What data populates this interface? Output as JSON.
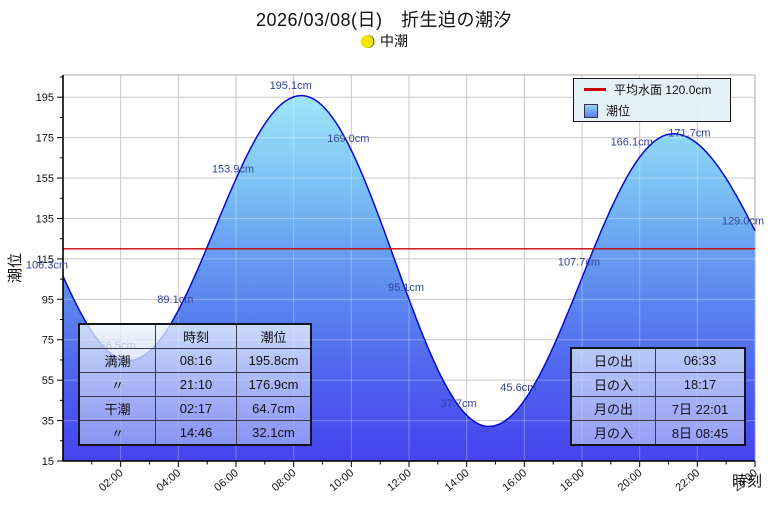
{
  "title": "2026/03/08(日)　折生迫の潮汐",
  "moon": {
    "phase_label": "中潮"
  },
  "legend": {
    "mean_label": "平均水面 120.0cm",
    "series_label": "潮位"
  },
  "axes": {
    "y_label": "潮位",
    "x_label": "時刻"
  },
  "chart_data": {
    "type": "area",
    "title": "2026/03/08(日)　折生迫の潮汐",
    "ylabel": "潮位",
    "xlabel": "時刻",
    "ylim": [
      15,
      206
    ],
    "xlim_hours": [
      0,
      24
    ],
    "y_ticks": [
      15,
      35,
      55,
      75,
      95,
      115,
      135,
      155,
      175,
      195
    ],
    "x_tick_hours": [
      2,
      4,
      6,
      8,
      10,
      12,
      14,
      16,
      18,
      20,
      22,
      24
    ],
    "x_tick_labels": [
      "02:00",
      "04:00",
      "06:00",
      "08:00",
      "10:00",
      "12:00",
      "14:00",
      "16:00",
      "18:00",
      "20:00",
      "22:00",
      "24:00"
    ],
    "mean_water_level_cm": 120.0,
    "mean_line_label": "平均水面 120.0cm",
    "series_label": "潮位",
    "sampled_points": [
      {
        "hour": 0,
        "value": 106.3,
        "label": "106.3cm"
      },
      {
        "hour": 2,
        "value": 66.5,
        "label": "66.5cm"
      },
      {
        "hour": 4,
        "value": 89.1,
        "label": "89.1cm"
      },
      {
        "hour": 6,
        "value": 153.9,
        "label": "153.9cm"
      },
      {
        "hour": 8,
        "value": 195.1,
        "label": "195.1cm"
      },
      {
        "hour": 10,
        "value": 169.0,
        "label": "169.0cm"
      },
      {
        "hour": 12,
        "value": 95.1,
        "label": "95.1cm"
      },
      {
        "hour": 14,
        "value": 37.7,
        "label": "37.7cm"
      },
      {
        "hour": 16,
        "value": 45.6,
        "label": "45.6cm"
      },
      {
        "hour": 18,
        "value": 107.7,
        "label": "107.7cm"
      },
      {
        "hour": 20,
        "value": 166.1,
        "label": "166.1cm"
      },
      {
        "hour": 22,
        "value": 171.7,
        "label": "171.7cm"
      },
      {
        "hour": 24,
        "value": 129.0,
        "label": "129.0cm"
      }
    ],
    "tide_events": [
      {
        "type": "満潮",
        "time": "08:16",
        "hour": 8.267,
        "level_cm": 195.8
      },
      {
        "type": "満潮",
        "time": "21:10",
        "hour": 21.167,
        "level_cm": 176.9
      },
      {
        "type": "干潮",
        "time": "02:17",
        "hour": 2.283,
        "level_cm": 64.7
      },
      {
        "type": "干潮",
        "time": "14:46",
        "hour": 14.767,
        "level_cm": 32.1
      }
    ],
    "curve_boundary_hints": {
      "pre": [
        -3.7,
        196.0
      ],
      "post": [
        27.5,
        62.0
      ]
    },
    "legend_position": "top-right",
    "grid": true
  },
  "tide_table": {
    "headers": [
      "",
      "時刻",
      "潮位"
    ],
    "rows": [
      [
        "満潮",
        "08:16",
        "195.8cm"
      ],
      [
        "〃",
        "21:10",
        "176.9cm"
      ],
      [
        "干潮",
        "02:17",
        "64.7cm"
      ],
      [
        "〃",
        "14:46",
        "32.1cm"
      ]
    ]
  },
  "sun_moon_table": {
    "rows": [
      [
        "日の出",
        "06:33"
      ],
      [
        "日の入",
        "18:17"
      ],
      [
        "月の出",
        "7日 22:01"
      ],
      [
        "月の入",
        "8日 08:45"
      ]
    ]
  },
  "colors": {
    "mean_line": "#cc0000",
    "curve_stroke": "#0808cf",
    "fill_top": "#a8eefa",
    "fill_mid": "#6192f0",
    "fill_bottom": "#4542ee",
    "point_label": "#334499",
    "moon_icon_fill": "#f5e400"
  }
}
